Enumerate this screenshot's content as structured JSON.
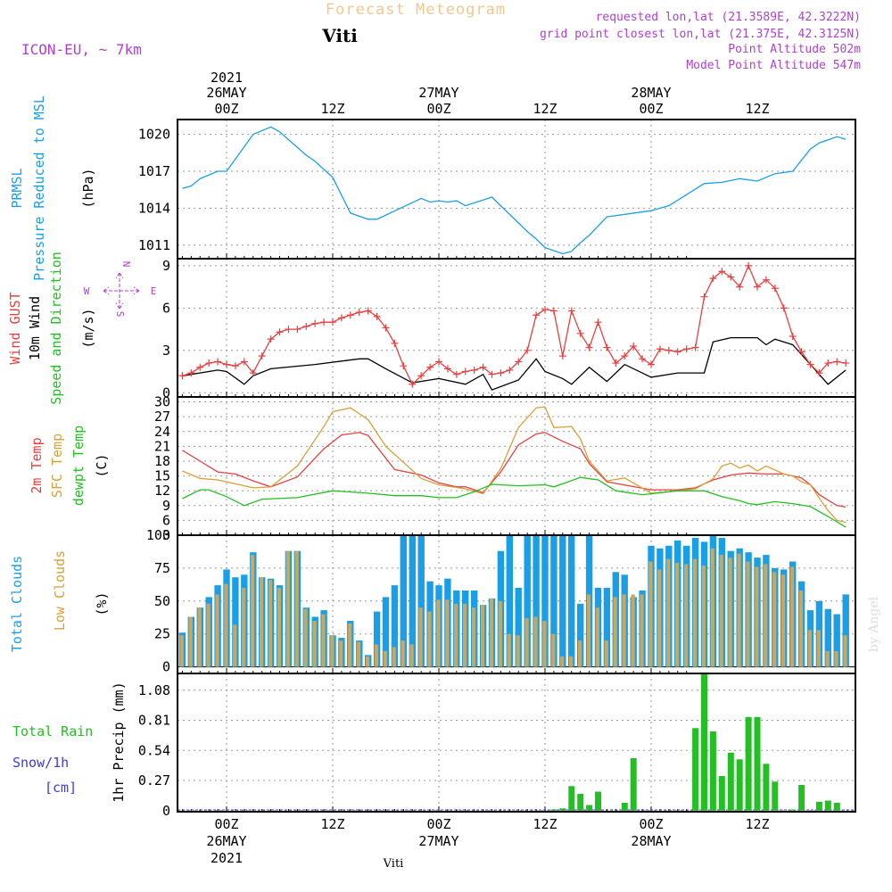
{
  "header": {
    "title": "Forecast Meteogram",
    "location": "Viti",
    "model": "ICON-EU, ~ 7km",
    "info_lines": [
      "requested lon,lat (21.3589E, 42.3222N)",
      "grid point closest lon,lat (21.375E, 42.3125N)",
      "Point Altitude 502m",
      "Model Point Altitude 547m"
    ],
    "watermark": "by Angel",
    "footer": "Viti"
  },
  "time_axis": {
    "top_year": "2021",
    "hour_labels": [
      "00Z",
      "12Z",
      "00Z",
      "12Z",
      "00Z",
      "12Z"
    ],
    "day_labels": [
      "26MAY",
      "27MAY",
      "28MAY"
    ]
  },
  "panel_labels": {
    "pressure": [
      "PRMSL",
      "Pressure Reduced to MSL",
      "(hPa)"
    ],
    "wind": [
      "Wind GUST",
      "10m Wind",
      "Speed and Direction",
      "(m/s)"
    ],
    "compass": [
      "N",
      "S",
      "W",
      "E"
    ],
    "temp": [
      "2m Temp",
      "SFC Temp",
      "dewpt Temp",
      "(C)"
    ],
    "clouds": [
      "Total Clouds",
      "Low Clouds",
      "(%)"
    ],
    "precip": [
      "Total  Rain",
      "Snow/1h",
      "[cm]",
      "1hr Precip (mm)"
    ]
  },
  "colors": {
    "pressure": "#1a9fe6",
    "gust": "#e84040",
    "wind": "#000000",
    "t2m": "#e84040",
    "tsfc": "#d8a03a",
    "dewpt": "#22c022",
    "total_clouds": "#1a9fe6",
    "low_clouds": "#c8a860",
    "rain": "#22c022",
    "snow": "#3a3ae8",
    "title": "#f0c890",
    "info": "#b040d0"
  },
  "chart_data": [
    {
      "type": "line",
      "name": "PRMSL",
      "ylabel": "(hPa)",
      "yticks": [
        1011,
        1014,
        1017,
        1020
      ],
      "ylim": [
        1009.9,
        1021.2
      ],
      "x": [
        "2021-05-25T19Z",
        "2021-05-25T20Z",
        "2021-05-25T21Z",
        "2021-05-25T22Z",
        "2021-05-25T23Z",
        "2021-05-26T00Z",
        "2021-05-26T03Z",
        "2021-05-26T05Z",
        "2021-05-26T06Z",
        "2021-05-26T09Z",
        "2021-05-26T10Z",
        "2021-05-26T12Z",
        "2021-05-26T14Z",
        "2021-05-26T16Z",
        "2021-05-26T17Z",
        "2021-05-26T22Z",
        "2021-05-26T23Z",
        "2021-05-27T00Z",
        "2021-05-27T01Z",
        "2021-05-27T02Z",
        "2021-05-27T03Z",
        "2021-05-27T06Z",
        "2021-05-27T09Z",
        "2021-05-27T10Z",
        "2021-05-27T11Z",
        "2021-05-27T12Z",
        "2021-05-27T14Z",
        "2021-05-27T15Z",
        "2021-05-27T16Z",
        "2021-05-27T17Z",
        "2021-05-27T19Z",
        "2021-05-28T00Z",
        "2021-05-28T01Z",
        "2021-05-28T02Z",
        "2021-05-28T06Z",
        "2021-05-28T08Z",
        "2021-05-28T10Z",
        "2021-05-28T12Z",
        "2021-05-28T14Z",
        "2021-05-28T16Z",
        "2021-05-28T18Z",
        "2021-05-28T19Z",
        "2021-05-28T21Z",
        "2021-05-28T22Z"
      ],
      "y": [
        1015.6,
        1015.8,
        1016.4,
        1016.7,
        1017.0,
        1017.0,
        1020.0,
        1020.6,
        1020.2,
        1018.3,
        1017.8,
        1016.5,
        1013.6,
        1013.1,
        1013.1,
        1014.8,
        1014.5,
        1014.6,
        1014.5,
        1014.6,
        1014.2,
        1014.9,
        1012.8,
        1012.1,
        1011.5,
        1010.8,
        1010.3,
        1010.5,
        1011.2,
        1011.8,
        1013.3,
        1013.8,
        1014.0,
        1014.2,
        1016.0,
        1016.1,
        1016.4,
        1016.2,
        1016.8,
        1017.0,
        1018.8,
        1019.3,
        1019.8,
        1019.6
      ]
    },
    {
      "type": "line",
      "name": "Wind",
      "ylabel": "(m/s)",
      "yticks": [
        0,
        3,
        6,
        9
      ],
      "ylim": [
        -0.3,
        9.5
      ],
      "x": [
        "2021-05-25T19Z",
        "2021-05-25T23Z",
        "2021-05-26T00Z",
        "2021-05-26T02Z",
        "2021-05-26T03Z",
        "2021-05-26T05Z",
        "2021-05-26T10Z",
        "2021-05-26T15Z",
        "2021-05-26T16Z",
        "2021-05-26T18Z",
        "2021-05-26T21Z",
        "2021-05-27T00Z",
        "2021-05-27T03Z",
        "2021-05-27T05Z",
        "2021-05-27T06Z",
        "2021-05-27T09Z",
        "2021-05-27T11Z",
        "2021-05-27T12Z",
        "2021-05-27T14Z",
        "2021-05-27T15Z",
        "2021-05-27T17Z",
        "2021-05-27T19Z",
        "2021-05-27T21Z",
        "2021-05-28T00Z",
        "2021-05-28T03Z",
        "2021-05-28T06Z",
        "2021-05-28T07Z",
        "2021-05-28T09Z",
        "2021-05-28T12Z",
        "2021-05-28T13Z",
        "2021-05-28T14Z",
        "2021-05-28T16Z",
        "2021-05-28T18Z",
        "2021-05-28T20Z",
        "2021-05-28T22Z"
      ],
      "y": [
        1.2,
        1.6,
        1.5,
        0.6,
        1.2,
        1.7,
        2.0,
        2.4,
        2.4,
        1.7,
        0.7,
        1.0,
        0.6,
        1.3,
        0.2,
        0.9,
        2.4,
        1.5,
        1.0,
        0.6,
        1.8,
        0.8,
        2.0,
        1.1,
        1.4,
        1.4,
        3.6,
        3.9,
        3.9,
        3.4,
        3.8,
        3.4,
        2.0,
        0.6,
        1.6
      ]
    },
    {
      "type": "line",
      "name": "Wind GUST",
      "ylabel": "(m/s)",
      "x": [
        "2021-05-25T19Z",
        "2021-05-25T20Z",
        "2021-05-25T21Z",
        "2021-05-25T22Z",
        "2021-05-25T23Z",
        "2021-05-26T00Z",
        "2021-05-26T01Z",
        "2021-05-26T02Z",
        "2021-05-26T03Z",
        "2021-05-26T04Z",
        "2021-05-26T05Z",
        "2021-05-26T06Z",
        "2021-05-26T07Z",
        "2021-05-26T08Z",
        "2021-05-26T09Z",
        "2021-05-26T10Z",
        "2021-05-26T11Z",
        "2021-05-26T12Z",
        "2021-05-26T13Z",
        "2021-05-26T14Z",
        "2021-05-26T15Z",
        "2021-05-26T16Z",
        "2021-05-26T17Z",
        "2021-05-26T18Z",
        "2021-05-26T19Z",
        "2021-05-26T20Z",
        "2021-05-26T21Z",
        "2021-05-26T22Z",
        "2021-05-26T23Z",
        "2021-05-27T00Z",
        "2021-05-27T01Z",
        "2021-05-27T02Z",
        "2021-05-27T03Z",
        "2021-05-27T04Z",
        "2021-05-27T05Z",
        "2021-05-27T06Z",
        "2021-05-27T07Z",
        "2021-05-27T08Z",
        "2021-05-27T09Z",
        "2021-05-27T10Z",
        "2021-05-27T11Z",
        "2021-05-27T12Z",
        "2021-05-27T13Z",
        "2021-05-27T14Z",
        "2021-05-27T15Z",
        "2021-05-27T16Z",
        "2021-05-27T17Z",
        "2021-05-27T18Z",
        "2021-05-27T19Z",
        "2021-05-27T20Z",
        "2021-05-27T21Z",
        "2021-05-27T22Z",
        "2021-05-27T23Z",
        "2021-05-28T00Z",
        "2021-05-28T01Z",
        "2021-05-28T02Z",
        "2021-05-28T03Z",
        "2021-05-28T04Z",
        "2021-05-28T05Z",
        "2021-05-28T06Z",
        "2021-05-28T07Z",
        "2021-05-28T08Z",
        "2021-05-28T09Z",
        "2021-05-28T10Z",
        "2021-05-28T11Z",
        "2021-05-28T12Z",
        "2021-05-28T13Z",
        "2021-05-28T14Z",
        "2021-05-28T15Z",
        "2021-05-28T16Z",
        "2021-05-28T17Z",
        "2021-05-28T18Z",
        "2021-05-28T19Z",
        "2021-05-28T20Z",
        "2021-05-28T21Z",
        "2021-05-28T22Z"
      ],
      "y": [
        1.2,
        1.4,
        1.8,
        2.1,
        2.2,
        2.0,
        1.9,
        2.2,
        1.4,
        2.6,
        3.8,
        4.3,
        4.5,
        4.5,
        4.7,
        4.9,
        5.0,
        5.0,
        5.3,
        5.5,
        5.7,
        5.8,
        5.4,
        4.6,
        3.5,
        1.9,
        0.6,
        1.2,
        1.8,
        2.2,
        1.7,
        1.3,
        1.5,
        1.6,
        1.8,
        1.3,
        1.4,
        1.6,
        2.2,
        3.0,
        5.5,
        5.9,
        5.8,
        2.6,
        5.8,
        4.2,
        3.2,
        5.0,
        3.2,
        2.1,
        2.6,
        3.3,
        2.4,
        2.0,
        3.1,
        3.0,
        2.9,
        3.1,
        3.2,
        6.8,
        8.1,
        8.6,
        8.2,
        7.5,
        9.0,
        7.5,
        8.0,
        7.4,
        6.0,
        4.0,
        2.9,
        2.0,
        1.4,
        2.1,
        2.2,
        2.1
      ]
    },
    {
      "type": "line",
      "name": "2m Temp",
      "ylabel": "(C)",
      "yticks": [
        3,
        6,
        9,
        12,
        15,
        18,
        21,
        24,
        27,
        30
      ],
      "ylim": [
        3,
        31
      ],
      "x": [
        "2021-05-25T19Z",
        "2021-05-25T21Z",
        "2021-05-25T23Z",
        "2021-05-26T01Z",
        "2021-05-26T03Z",
        "2021-05-26T05Z",
        "2021-05-26T08Z",
        "2021-05-26T11Z",
        "2021-05-26T13Z",
        "2021-05-26T15Z",
        "2021-05-26T16Z",
        "2021-05-26T19Z",
        "2021-05-26T22Z",
        "2021-05-27T00Z",
        "2021-05-27T02Z",
        "2021-05-27T03Z",
        "2021-05-27T05Z",
        "2021-05-27T07Z",
        "2021-05-27T09Z",
        "2021-05-27T11Z",
        "2021-05-27T12Z",
        "2021-05-27T14Z",
        "2021-05-27T16Z",
        "2021-05-27T17Z",
        "2021-05-27T19Z",
        "2021-05-28T00Z",
        "2021-05-28T02Z",
        "2021-05-28T03Z",
        "2021-05-28T05Z",
        "2021-05-28T07Z",
        "2021-05-28T09Z",
        "2021-05-28T11Z",
        "2021-05-28T13Z",
        "2021-05-28T15Z",
        "2021-05-28T17Z",
        "2021-05-28T18Z",
        "2021-05-28T19Z",
        "2021-05-28T21Z",
        "2021-05-28T22Z"
      ],
      "y": [
        20.2,
        18.0,
        15.8,
        15.4,
        14.0,
        12.8,
        14.8,
        20.5,
        23.3,
        23.8,
        23.2,
        16.3,
        15.2,
        13.6,
        12.8,
        12.8,
        11.6,
        15.8,
        21.3,
        23.5,
        23.8,
        22.0,
        20.5,
        17.5,
        13.8,
        12.2,
        12.2,
        12.2,
        12.6,
        14.2,
        15.2,
        15.6,
        15.4,
        15.4,
        14.6,
        13.2,
        11.2,
        9.0,
        8.7
      ]
    },
    {
      "type": "line",
      "name": "SFC Temp",
      "ylabel": "(C)",
      "x": [
        "2021-05-25T19Z",
        "2021-05-25T21Z",
        "2021-05-25T23Z",
        "2021-05-26T01Z",
        "2021-05-26T03Z",
        "2021-05-26T05Z",
        "2021-05-26T08Z",
        "2021-05-26T11Z",
        "2021-05-26T12Z",
        "2021-05-26T14Z",
        "2021-05-26T16Z",
        "2021-05-26T18Z",
        "2021-05-26T22Z",
        "2021-05-27T00Z",
        "2021-05-27T03Z",
        "2021-05-27T05Z",
        "2021-05-27T07Z",
        "2021-05-27T09Z",
        "2021-05-27T11Z",
        "2021-05-27T12Z",
        "2021-05-27T13Z",
        "2021-05-27T15Z",
        "2021-05-27T16Z",
        "2021-05-27T17Z",
        "2021-05-27T19Z",
        "2021-05-27T21Z",
        "2021-05-28T00Z",
        "2021-05-28T02Z",
        "2021-05-28T03Z",
        "2021-05-28T05Z",
        "2021-05-28T07Z",
        "2021-05-28T08Z",
        "2021-05-28T09Z",
        "2021-05-28T10Z",
        "2021-05-28T11Z",
        "2021-05-28T12Z",
        "2021-05-28T13Z",
        "2021-05-28T15Z",
        "2021-05-28T16Z",
        "2021-05-28T17Z",
        "2021-05-28T18Z",
        "2021-05-28T19Z",
        "2021-05-28T20Z",
        "2021-05-28T21Z",
        "2021-05-28T22Z"
      ],
      "y": [
        16.0,
        14.5,
        14.2,
        13.4,
        12.6,
        12.8,
        17.0,
        25.0,
        28.0,
        28.8,
        26.4,
        21.0,
        14.5,
        13.2,
        12.4,
        11.4,
        16.5,
        24.8,
        28.8,
        29.0,
        24.8,
        25.0,
        22.5,
        18.0,
        14.0,
        14.6,
        11.5,
        11.8,
        12.0,
        12.4,
        14.4,
        17.0,
        17.6,
        16.6,
        17.2,
        16.0,
        17.0,
        15.4,
        15.0,
        13.8,
        13.2,
        10.5,
        8.0,
        6.0,
        5.6
      ]
    },
    {
      "type": "line",
      "name": "dewpt Temp",
      "ylabel": "(C)",
      "x": [
        "2021-05-25T19Z",
        "2021-05-25T21Z",
        "2021-05-25T22Z",
        "2021-05-26T00Z",
        "2021-05-26T02Z",
        "2021-05-26T04Z",
        "2021-05-26T08Z",
        "2021-05-26T12Z",
        "2021-05-26T16Z",
        "2021-05-26T19Z",
        "2021-05-26T22Z",
        "2021-05-27T00Z",
        "2021-05-27T02Z",
        "2021-05-27T04Z",
        "2021-05-27T06Z",
        "2021-05-27T09Z",
        "2021-05-27T12Z",
        "2021-05-27T13Z",
        "2021-05-27T14Z",
        "2021-05-27T16Z",
        "2021-05-27T18Z",
        "2021-05-27T20Z",
        "2021-05-27T23Z",
        "2021-05-28T03Z",
        "2021-05-28T06Z",
        "2021-05-28T08Z",
        "2021-05-28T10Z",
        "2021-05-28T11Z",
        "2021-05-28T12Z",
        "2021-05-28T14Z",
        "2021-05-28T16Z",
        "2021-05-28T18Z",
        "2021-05-28T20Z",
        "2021-05-28T22Z"
      ],
      "y": [
        10.4,
        12.2,
        12.2,
        10.8,
        9.0,
        10.3,
        10.6,
        12.0,
        11.5,
        11.0,
        11.0,
        10.6,
        10.6,
        11.8,
        13.3,
        13.0,
        13.2,
        12.8,
        13.4,
        14.7,
        14.2,
        12.0,
        11.2,
        12.0,
        12.0,
        10.8,
        10.0,
        9.4,
        9.2,
        9.8,
        9.4,
        8.8,
        6.8,
        4.6
      ]
    },
    {
      "type": "bar",
      "name": "Total Clouds",
      "ylabel": "(%)",
      "yticks": [
        0,
        25,
        50,
        75,
        100
      ],
      "ylim": [
        -5,
        100
      ],
      "x_start": "2021-05-25T19Z",
      "x_step_hours": 1,
      "values": [
        26,
        38,
        45,
        53,
        62,
        74,
        68,
        70,
        87,
        68,
        67,
        62,
        88,
        88,
        45,
        38,
        43,
        24,
        22,
        35,
        20,
        9,
        42,
        53,
        62,
        100,
        100,
        100,
        65,
        62,
        67,
        58,
        58,
        58,
        47,
        52,
        88,
        100,
        60,
        100,
        100,
        100,
        100,
        100,
        100,
        48,
        100,
        60,
        60,
        72,
        70,
        53,
        58,
        92,
        90,
        92,
        96,
        92,
        98,
        95,
        100,
        98,
        88,
        90,
        87,
        83,
        85,
        75,
        74,
        80,
        65,
        43,
        50,
        44,
        40,
        55
      ]
    },
    {
      "type": "bar",
      "name": "Low Clouds",
      "ylabel": "(%)",
      "x_start": "2021-05-25T19Z",
      "x_step_hours": 1,
      "values": [
        24,
        38,
        45,
        48,
        55,
        63,
        32,
        60,
        85,
        68,
        66,
        60,
        88,
        88,
        44,
        35,
        40,
        24,
        20,
        33,
        19,
        8,
        17,
        12,
        15,
        20,
        17,
        45,
        42,
        51,
        51,
        48,
        48,
        45,
        47,
        52,
        50,
        25,
        24,
        37,
        38,
        35,
        25,
        8,
        8,
        20,
        55,
        45,
        20,
        53,
        55,
        55,
        55,
        80,
        74,
        82,
        79,
        78,
        82,
        77,
        90,
        85,
        83,
        86,
        80,
        76,
        78,
        72,
        70,
        76,
        58,
        28,
        28,
        12,
        12,
        24
      ]
    },
    {
      "type": "bar",
      "name": "1hr Precip",
      "ylabel": "1hr Precip (mm)",
      "yticks": [
        0,
        0.27,
        0.54,
        0.81,
        1.08
      ],
      "ylim": [
        -0.01,
        1.23
      ],
      "x_start": "2021-05-25T19Z",
      "x_step_hours": 1,
      "values": [
        0,
        0,
        0,
        0,
        0,
        0,
        0,
        0,
        0,
        0,
        0,
        0,
        0,
        0,
        0,
        0,
        0,
        0,
        0,
        0,
        0,
        0,
        0,
        0,
        0,
        0,
        0,
        0,
        0,
        0,
        0,
        0,
        0,
        0,
        0,
        0,
        0,
        0,
        0,
        0,
        0,
        0,
        0.01,
        0.02,
        0.22,
        0.15,
        0.05,
        0.17,
        0,
        0,
        0.07,
        0.47,
        0,
        0,
        0,
        0,
        0,
        0,
        0.74,
        1.24,
        0.71,
        0.31,
        0.52,
        0.46,
        0.84,
        0.84,
        0.42,
        0.26,
        0,
        0.01,
        0.23,
        0,
        0.08,
        0.09,
        0.07,
        0
      ]
    }
  ]
}
